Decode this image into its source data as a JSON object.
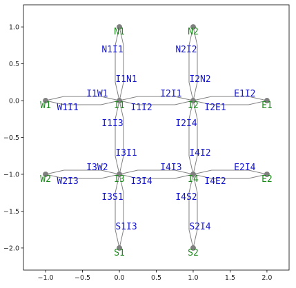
{
  "chart_data": {
    "type": "graph",
    "xlim": [
      -1.3,
      2.3
    ],
    "ylim": [
      -2.3,
      1.3
    ],
    "xticks": [
      -1.0,
      -0.5,
      0.0,
      0.5,
      1.0,
      1.5,
      2.0
    ],
    "xtick_labels": [
      "−1.0",
      "−0.5",
      "0.0",
      "0.5",
      "1.0",
      "1.5",
      "2.0"
    ],
    "yticks": [
      1.0,
      0.5,
      0.0,
      -0.5,
      -1.0,
      -1.5,
      -2.0
    ],
    "ytick_labels": [
      "1.0",
      "0.5",
      "0.0",
      "−0.5",
      "−1.0",
      "−1.5",
      "−2.0"
    ],
    "nodes": [
      {
        "id": "N1",
        "x": 0,
        "y": 1
      },
      {
        "id": "N2",
        "x": 1,
        "y": 1
      },
      {
        "id": "W1",
        "x": -1,
        "y": 0
      },
      {
        "id": "I1",
        "x": 0,
        "y": 0
      },
      {
        "id": "I2",
        "x": 1,
        "y": 0
      },
      {
        "id": "E1",
        "x": 2,
        "y": 0
      },
      {
        "id": "W2",
        "x": -1,
        "y": -1
      },
      {
        "id": "I3",
        "x": 0,
        "y": -1
      },
      {
        "id": "I4",
        "x": 1,
        "y": -1
      },
      {
        "id": "E2",
        "x": 2,
        "y": -1
      },
      {
        "id": "S1",
        "x": 0,
        "y": -2
      },
      {
        "id": "S2",
        "x": 1,
        "y": -2
      }
    ],
    "edges": [
      {
        "label": "N1I1",
        "from": "N1",
        "to": "I1"
      },
      {
        "label": "I1N1",
        "from": "I1",
        "to": "N1"
      },
      {
        "label": "N2I2",
        "from": "N2",
        "to": "I2"
      },
      {
        "label": "I2N2",
        "from": "I2",
        "to": "N2"
      },
      {
        "label": "W1I1",
        "from": "W1",
        "to": "I1"
      },
      {
        "label": "I1W1",
        "from": "I1",
        "to": "W1"
      },
      {
        "label": "I1I2",
        "from": "I1",
        "to": "I2"
      },
      {
        "label": "I2I1",
        "from": "I2",
        "to": "I1"
      },
      {
        "label": "I2E1",
        "from": "I2",
        "to": "E1"
      },
      {
        "label": "E1I2",
        "from": "E1",
        "to": "I2"
      },
      {
        "label": "I1I3",
        "from": "I1",
        "to": "I3"
      },
      {
        "label": "I3I1",
        "from": "I3",
        "to": "I1"
      },
      {
        "label": "I2I4",
        "from": "I2",
        "to": "I4"
      },
      {
        "label": "I4I2",
        "from": "I4",
        "to": "I2"
      },
      {
        "label": "W2I3",
        "from": "W2",
        "to": "I3"
      },
      {
        "label": "I3W2",
        "from": "I3",
        "to": "W2"
      },
      {
        "label": "I3I4",
        "from": "I3",
        "to": "I4"
      },
      {
        "label": "I4I3",
        "from": "I4",
        "to": "I3"
      },
      {
        "label": "I4E2",
        "from": "I4",
        "to": "E2"
      },
      {
        "label": "E2I4",
        "from": "E2",
        "to": "I4"
      },
      {
        "label": "I3S1",
        "from": "I3",
        "to": "S1"
      },
      {
        "label": "S1I3",
        "from": "S1",
        "to": "I3"
      },
      {
        "label": "I4S2",
        "from": "I4",
        "to": "S2"
      },
      {
        "label": "S2I4",
        "from": "S2",
        "to": "I4"
      }
    ]
  }
}
